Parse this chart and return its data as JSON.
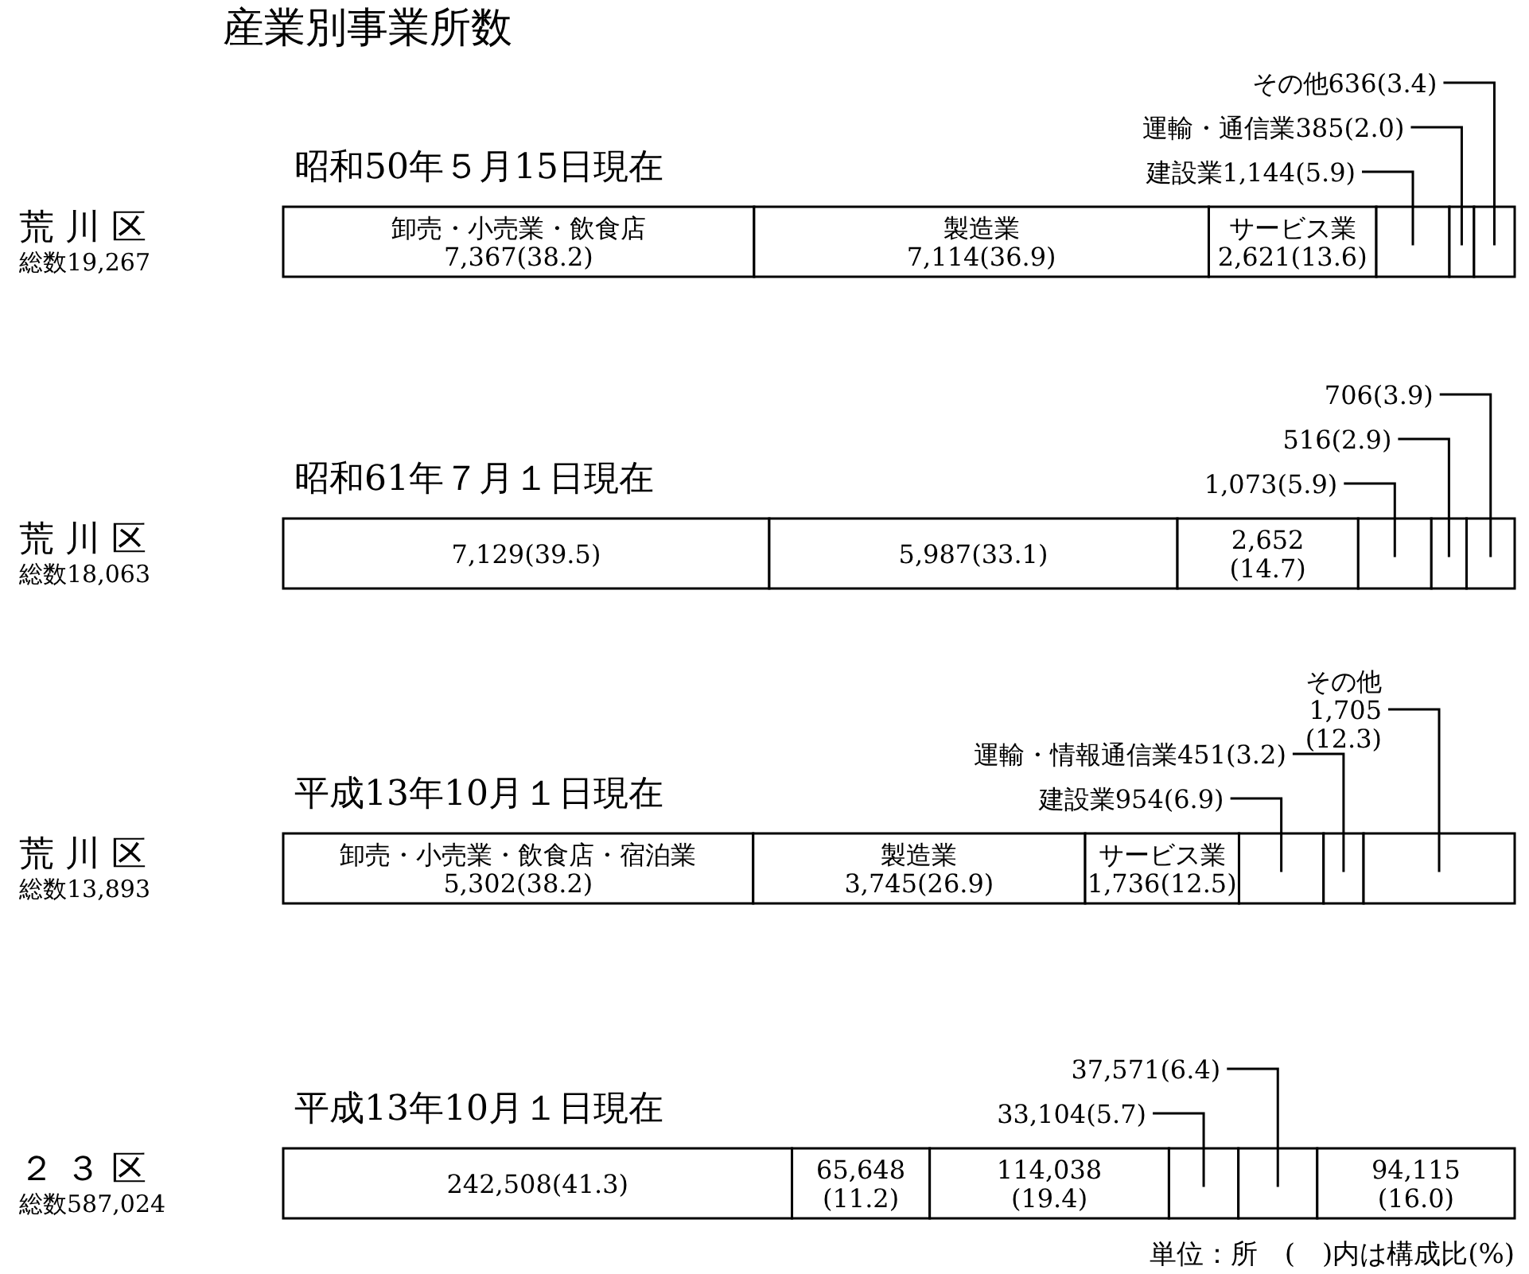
{
  "chart_data": [
    {
      "type": "bar",
      "orientation": "horizontal",
      "stacked": true,
      "title": "産業別事業所数",
      "subtitle": "昭和50年５月15日現在",
      "categories": [
        "荒 川 区"
      ],
      "annotations": [
        "総数19,267"
      ],
      "series": [
        {
          "name": "卸売・小売業・飲食店",
          "color": "#ffffff",
          "values": [
            7367
          ],
          "value_labels": [
            "7,367(38.2)"
          ]
        },
        {
          "name": "製造業",
          "color": "#ffffff",
          "values": [
            7114
          ],
          "value_labels": [
            "7,114(36.9)"
          ]
        },
        {
          "name": "サービス業",
          "color": "#ffffff",
          "values": [
            2621
          ],
          "value_labels": [
            "2,621(13.6)"
          ]
        },
        {
          "name": "建設業",
          "color": "#ffffff",
          "values": [
            1144
          ],
          "value_labels": [
            "1,144(5.9)"
          ]
        },
        {
          "name": "運輸・通信業",
          "color": "#ffffff",
          "values": [
            385
          ],
          "value_labels": [
            "385(2.0)"
          ]
        },
        {
          "name": "その他",
          "color": "#ffffff",
          "values": [
            636
          ],
          "value_labels": [
            "636(3.4)"
          ]
        }
      ]
    },
    {
      "type": "bar",
      "orientation": "horizontal",
      "stacked": true,
      "subtitle": "昭和61年７月１日現在",
      "categories": [
        "荒 川 区"
      ],
      "annotations": [
        "総数18,063"
      ],
      "series": [
        {
          "color": "#ffffff",
          "values": [
            7129
          ],
          "value_labels": [
            "7,129(39.5)"
          ]
        },
        {
          "color": "#ffffff",
          "values": [
            5987
          ],
          "value_labels": [
            "5,987(33.1)"
          ]
        },
        {
          "color": "#ffffff",
          "values": [
            2652
          ],
          "value_labels": [
            "2,652\n(14.7)"
          ]
        },
        {
          "color": "#ffffff",
          "values": [
            1073
          ],
          "value_labels": [
            "1,073(5.9)"
          ]
        },
        {
          "color": "#ffffff",
          "values": [
            516
          ],
          "value_labels": [
            "516(2.9)"
          ]
        },
        {
          "color": "#ffffff",
          "values": [
            706
          ],
          "value_labels": [
            "706(3.9)"
          ]
        }
      ]
    },
    {
      "type": "bar",
      "orientation": "horizontal",
      "stacked": true,
      "subtitle": "平成13年10月１日現在",
      "categories": [
        "荒 川 区"
      ],
      "annotations": [
        "総数13,893"
      ],
      "series": [
        {
          "name": "卸売・小売業・飲食店・宿泊業",
          "color": "#ffffff",
          "values": [
            5302
          ],
          "value_labels": [
            "5,302(38.2)"
          ]
        },
        {
          "name": "製造業",
          "color": "#ffffff",
          "values": [
            3745
          ],
          "value_labels": [
            "3,745(26.9)"
          ]
        },
        {
          "name": "サービス業",
          "color": "#ffffff",
          "values": [
            1736
          ],
          "value_labels": [
            "1,736(12.5)"
          ]
        },
        {
          "name": "建設業",
          "color": "#ffffff",
          "values": [
            954
          ],
          "value_labels": [
            "954(6.9)"
          ]
        },
        {
          "name": "運輸・情報通信業",
          "color": "#ffffff",
          "values": [
            451
          ],
          "value_labels": [
            "451(3.2)"
          ]
        },
        {
          "name": "その他",
          "color": "#ffffff",
          "values": [
            1705
          ],
          "value_labels": [
            "1,705\n(12.3)"
          ]
        }
      ]
    },
    {
      "type": "bar",
      "orientation": "horizontal",
      "stacked": true,
      "subtitle": "平成13年10月１日現在",
      "categories": [
        "２ ３ 区"
      ],
      "annotations": [
        "総数587,024",
        "単位：所　(　)内は構成比(%)"
      ],
      "series": [
        {
          "color": "#ffffff",
          "values": [
            242508
          ],
          "value_labels": [
            "242,508(41.3)"
          ]
        },
        {
          "color": "#ffffff",
          "values": [
            65648
          ],
          "value_labels": [
            "65,648\n(11.2)"
          ]
        },
        {
          "color": "#ffffff",
          "values": [
            114038
          ],
          "value_labels": [
            "114,038\n(19.4)"
          ]
        },
        {
          "color": "#ffffff",
          "values": [
            33104
          ],
          "value_labels": [
            "33,104(5.7)"
          ]
        },
        {
          "color": "#ffffff",
          "values": [
            37571
          ],
          "value_labels": [
            "37,571(6.4)"
          ]
        },
        {
          "color": "#ffffff",
          "values": [
            94115
          ],
          "value_labels": [
            "94,115\n(16.0)"
          ]
        }
      ]
    }
  ]
}
